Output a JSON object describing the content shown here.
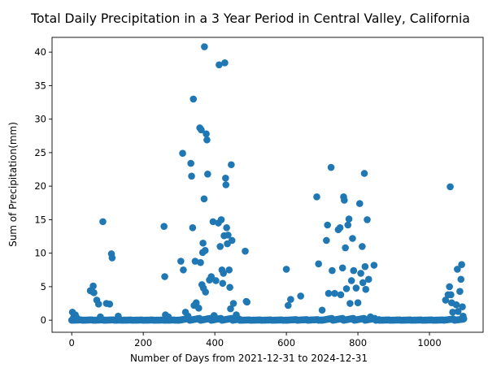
{
  "chart_data": {
    "type": "scatter",
    "title": "Total Daily Precipitation in a 3 Year Period in Central Valley, California",
    "xlabel": "Number of Days from 2021-12-31 to 2024-12-31",
    "ylabel": "Sum of Precipitation(mm)",
    "xlim": [
      -55,
      1150
    ],
    "ylim": [
      -1.8,
      42.2
    ],
    "xticks": [
      0,
      200,
      400,
      600,
      800,
      1000
    ],
    "yticks": [
      0,
      5,
      10,
      15,
      20,
      25,
      30,
      35,
      40
    ],
    "grid": false,
    "marker_color": "#1f77b4",
    "series": [
      {
        "points": [
          [
            2,
            1.2
          ],
          [
            5,
            0.4
          ],
          [
            10,
            0.8
          ],
          [
            15,
            0.3
          ],
          [
            52,
            4.4
          ],
          [
            57,
            4.3
          ],
          [
            60,
            5.1
          ],
          [
            62,
            4.1
          ],
          [
            70,
            3.0
          ],
          [
            75,
            2.4
          ],
          [
            80,
            0.5
          ],
          [
            87,
            14.7
          ],
          [
            97,
            2.5
          ],
          [
            106,
            2.4
          ],
          [
            111,
            9.9
          ],
          [
            113,
            9.3
          ],
          [
            130,
            0.6
          ],
          [
            258,
            14.0
          ],
          [
            260,
            6.5
          ],
          [
            262,
            0.8
          ],
          [
            270,
            0.5
          ],
          [
            305,
            8.8
          ],
          [
            310,
            24.9
          ],
          [
            312,
            7.5
          ],
          [
            318,
            1.2
          ],
          [
            325,
            0.6
          ],
          [
            333,
            23.4
          ],
          [
            335,
            21.5
          ],
          [
            338,
            13.8
          ],
          [
            340,
            33.0
          ],
          [
            342,
            2.2
          ],
          [
            345,
            8.8
          ],
          [
            348,
            2.6
          ],
          [
            355,
            1.8
          ],
          [
            358,
            28.7
          ],
          [
            360,
            8.6
          ],
          [
            362,
            28.4
          ],
          [
            364,
            5.3
          ],
          [
            366,
            10.1
          ],
          [
            367,
            11.5
          ],
          [
            368,
            4.8
          ],
          [
            370,
            18.1
          ],
          [
            371,
            40.8
          ],
          [
            373,
            10.4
          ],
          [
            374,
            4.2
          ],
          [
            376,
            27.8
          ],
          [
            378,
            26.9
          ],
          [
            380,
            21.8
          ],
          [
            385,
            6.0
          ],
          [
            390,
            6.5
          ],
          [
            395,
            14.7
          ],
          [
            398,
            0.7
          ],
          [
            403,
            5.9
          ],
          [
            410,
            14.5
          ],
          [
            412,
            38.1
          ],
          [
            415,
            11.0
          ],
          [
            418,
            15.0
          ],
          [
            420,
            7.5
          ],
          [
            422,
            5.5
          ],
          [
            424,
            7.0
          ],
          [
            426,
            12.6
          ],
          [
            428,
            38.4
          ],
          [
            430,
            21.2
          ],
          [
            431,
            20.2
          ],
          [
            433,
            13.8
          ],
          [
            435,
            11.4
          ],
          [
            437,
            12.7
          ],
          [
            440,
            7.5
          ],
          [
            442,
            4.9
          ],
          [
            444,
            1.7
          ],
          [
            446,
            23.2
          ],
          [
            448,
            11.9
          ],
          [
            452,
            2.5
          ],
          [
            460,
            0.8
          ],
          [
            485,
            10.3
          ],
          [
            488,
            2.8
          ],
          [
            490,
            2.7
          ],
          [
            600,
            7.6
          ],
          [
            605,
            2.2
          ],
          [
            612,
            3.1
          ],
          [
            640,
            3.6
          ],
          [
            685,
            18.4
          ],
          [
            690,
            8.4
          ],
          [
            700,
            1.5
          ],
          [
            712,
            11.9
          ],
          [
            715,
            14.2
          ],
          [
            718,
            4.0
          ],
          [
            725,
            22.8
          ],
          [
            728,
            7.4
          ],
          [
            735,
            4.0
          ],
          [
            745,
            13.5
          ],
          [
            750,
            13.8
          ],
          [
            752,
            3.8
          ],
          [
            757,
            7.8
          ],
          [
            760,
            18.4
          ],
          [
            762,
            17.9
          ],
          [
            765,
            10.8
          ],
          [
            768,
            4.7
          ],
          [
            772,
            14.2
          ],
          [
            775,
            15.1
          ],
          [
            778,
            2.5
          ],
          [
            782,
            5.9
          ],
          [
            785,
            12.2
          ],
          [
            788,
            7.4
          ],
          [
            795,
            4.8
          ],
          [
            800,
            2.6
          ],
          [
            805,
            17.4
          ],
          [
            808,
            7.0
          ],
          [
            812,
            11.0
          ],
          [
            814,
            5.6
          ],
          [
            818,
            21.9
          ],
          [
            820,
            8.0
          ],
          [
            822,
            4.6
          ],
          [
            826,
            15.0
          ],
          [
            830,
            6.1
          ],
          [
            835,
            0.5
          ],
          [
            845,
            8.2
          ],
          [
            1045,
            3.0
          ],
          [
            1052,
            3.8
          ],
          [
            1056,
            5.0
          ],
          [
            1058,
            19.9
          ],
          [
            1060,
            3.8
          ],
          [
            1062,
            2.6
          ],
          [
            1065,
            1.2
          ],
          [
            1075,
            2.3
          ],
          [
            1078,
            7.6
          ],
          [
            1080,
            1.3
          ],
          [
            1085,
            4.3
          ],
          [
            1088,
            6.1
          ],
          [
            1090,
            8.3
          ],
          [
            1092,
            2.0
          ],
          [
            1094,
            0.6
          ],
          [
            1096,
            0.2
          ]
        ],
        "zero_runs": [
          [
            0,
            140,
            0.05
          ],
          [
            140,
            300,
            0.03
          ],
          [
            300,
            470,
            0.3
          ],
          [
            470,
            600,
            0.04
          ],
          [
            600,
            700,
            0.1
          ],
          [
            700,
            860,
            0.3
          ],
          [
            860,
            1040,
            0.04
          ],
          [
            1040,
            1097,
            0.2
          ]
        ]
      }
    ]
  }
}
